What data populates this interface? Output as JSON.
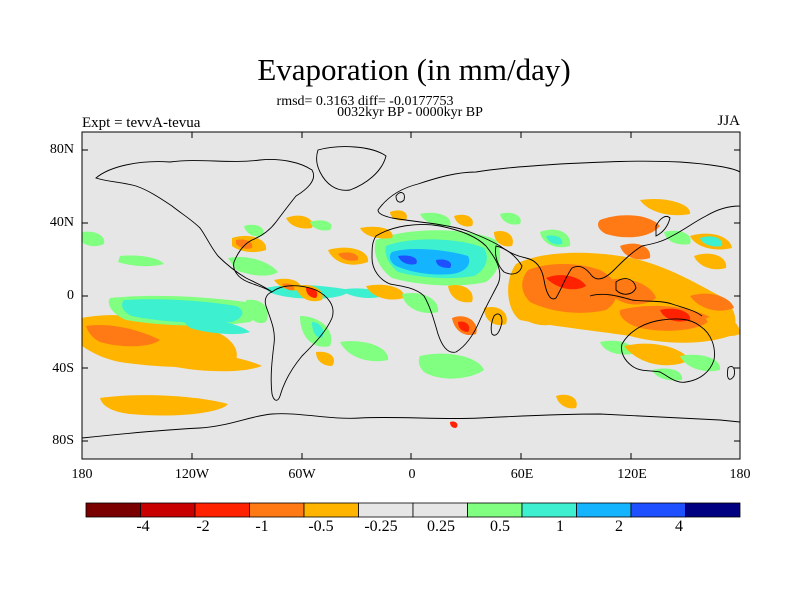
{
  "title": "Evaporation (in mm/day)",
  "stats": "rmsd= 0.3163 diff= -0.0177753",
  "periods": "0032kyr BP - 0000kyr BP",
  "experiment": "Expt = tevvA-tevua",
  "season": "JJA",
  "lat_ticks": [
    "80N",
    "40N",
    "0",
    "40S",
    "80S"
  ],
  "lon_ticks": [
    "180",
    "120W",
    "60W",
    "0",
    "60E",
    "120E",
    "180"
  ],
  "colorbar": {
    "colors": [
      "#7a0000",
      "#c80000",
      "#ff2200",
      "#ff7a14",
      "#ffb400",
      "#e6e6e6",
      "#e6e6e6",
      "#80ff80",
      "#3cf0d0",
      "#14b4ff",
      "#1e50ff",
      "#000080"
    ],
    "labels": [
      "-4",
      "-2",
      "-1",
      "-0.5",
      "-0.25",
      "0.25",
      "0.5",
      "1",
      "2",
      "4"
    ]
  },
  "colors": {
    "background": "#e6e6e6",
    "dark_red": "#c80000",
    "red": "#ff2200",
    "orange": "#ff7a14",
    "light_orange": "#ffb400",
    "green": "#80ff80",
    "cyan": "#3cf0d0",
    "blue": "#14b4ff",
    "dark_blue": "#1e50ff"
  }
}
